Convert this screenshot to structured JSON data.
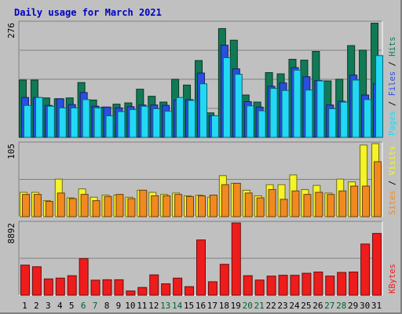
{
  "colors": {
    "background": "#c0c0c0",
    "hits": "#117a55",
    "files": "#2a4ee0",
    "pages": "#22d8f5",
    "visits": "#f5f32a",
    "sites": "#f08a20",
    "kbytes": "#ef1c1c",
    "title": "#0000c0",
    "weekend": "#006030",
    "weekday": "#000000",
    "slash": "#000000"
  },
  "chart_data": {
    "type": "bar",
    "title": "Daily usage for March 2021",
    "categories": [
      "1",
      "2",
      "3",
      "4",
      "5",
      "6",
      "7",
      "8",
      "9",
      "10",
      "11",
      "12",
      "13",
      "14",
      "15",
      "16",
      "17",
      "18",
      "19",
      "20",
      "21",
      "22",
      "23",
      "24",
      "25",
      "26",
      "27",
      "28",
      "29",
      "30",
      "31"
    ],
    "weekend_days": [
      "6",
      "7",
      "13",
      "14",
      "20",
      "21",
      "27",
      "28"
    ],
    "panels": [
      {
        "id": "hits-files-pages",
        "ymax_label": "276",
        "ylim": [
          0,
          276
        ],
        "legend": [
          "Pages",
          "Files",
          "Hits"
        ],
        "series": [
          {
            "name": "Hits",
            "values": [
              138,
              138,
              95,
              93,
              95,
              132,
              90,
              73,
              80,
              83,
              116,
              99,
              85,
              140,
              126,
              185,
              59,
              262,
              234,
              102,
              85,
              156,
              153,
              188,
              186,
              207,
              136,
              140,
              221,
              210,
              275
            ]
          },
          {
            "name": "Files",
            "values": [
              96,
              96,
              77,
              93,
              79,
              108,
              75,
              73,
              71,
              74,
              78,
              78,
              77,
              90,
              91,
              155,
              52,
              222,
              165,
              86,
              73,
              123,
              131,
              168,
              146,
              137,
              78,
              87,
              150,
              102,
              129
            ]
          },
          {
            "name": "Pages",
            "values": [
              77,
              96,
              75,
              71,
              71,
              91,
              71,
              52,
              62,
              67,
              75,
              69,
              63,
              96,
              89,
              129,
              52,
              192,
              152,
              76,
              64,
              118,
              113,
              162,
              114,
              136,
              69,
              85,
              138,
              91,
              197
            ]
          }
        ]
      },
      {
        "id": "visits-sites",
        "ymax_label": "105",
        "ylim": [
          0,
          105
        ],
        "legend": [
          "Sites",
          "Visits"
        ],
        "series": [
          {
            "name": "Visits",
            "values": [
              35,
              35,
              23,
              54,
              27,
              40,
              28,
              31,
              31,
              28,
              38,
              35,
              32,
              34,
              30,
              31,
              28,
              59,
              48,
              38,
              30,
              46,
              46,
              60,
              39,
              45,
              34,
              54,
              50,
              103,
              105
            ]
          },
          {
            "name": "Sites",
            "values": [
              32,
              32,
              22,
              34,
              26,
              32,
              23,
              29,
              32,
              26,
              38,
              30,
              30,
              32,
              29,
              30,
              31,
              46,
              48,
              34,
              27,
              39,
              25,
              37,
              32,
              35,
              32,
              37,
              44,
              44,
              79
            ]
          }
        ]
      },
      {
        "id": "kbytes",
        "ymax_label": "8892",
        "ylim": [
          0,
          8892
        ],
        "legend": [
          "KBytes"
        ],
        "series": [
          {
            "name": "KBytes",
            "values": [
              3700,
              3500,
              2000,
              2100,
              2400,
              4500,
              1850,
              1900,
              1900,
              520,
              950,
              2500,
              1400,
              2100,
              1050,
              6800,
              1650,
              3800,
              9000,
              2400,
              1860,
              2350,
              2450,
              2450,
              2700,
              2850,
              2350,
              2800,
              2850,
              6300,
              7600
            ]
          }
        ]
      }
    ]
  }
}
